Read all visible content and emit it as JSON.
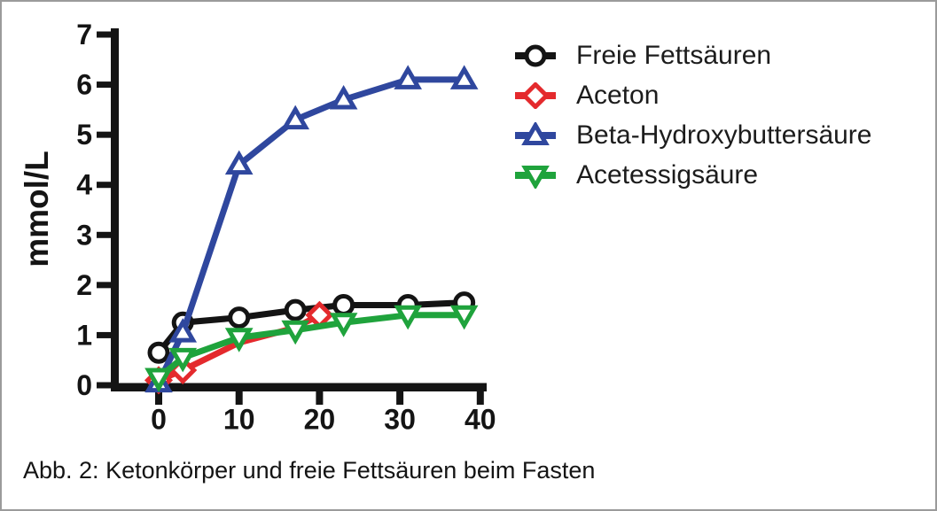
{
  "figure": {
    "caption": "Abb. 2: Ketonkörper und freie Fettsäuren beim Fasten"
  },
  "chart_data": {
    "type": "line",
    "title": "",
    "xlabel": "",
    "ylabel": "mmol/L",
    "xlim": [
      0,
      40
    ],
    "ylim": [
      0,
      7
    ],
    "x_ticks": [
      0,
      10,
      20,
      30,
      40
    ],
    "y_ticks": [
      0,
      1,
      2,
      3,
      4,
      5,
      6,
      7
    ],
    "grid": false,
    "legend_position": "top-right",
    "axis_color": "#141414",
    "series": [
      {
        "name": "Freie Fettsäuren",
        "color": "#141414",
        "marker": "circle",
        "x": [
          0,
          3,
          10,
          17,
          23,
          31,
          38
        ],
        "values": [
          0.65,
          1.25,
          1.35,
          1.5,
          1.6,
          1.6,
          1.65
        ]
      },
      {
        "name": "Aceton",
        "color": "#e42a2d",
        "marker": "diamond",
        "x": [
          0,
          3,
          10,
          17,
          20
        ],
        "values": [
          0.1,
          0.3,
          0.85,
          1.15,
          1.4
        ],
        "marker_x": [
          0,
          3,
          20
        ]
      },
      {
        "name": "Beta-Hydroxybuttersäure",
        "color": "#2f479e",
        "marker": "triangle-up",
        "x": [
          0,
          3,
          10,
          17,
          23,
          31,
          38
        ],
        "values": [
          0.05,
          1.05,
          4.4,
          5.3,
          5.7,
          6.1,
          6.1
        ]
      },
      {
        "name": "Acetessigsäure",
        "color": "#1fa33c",
        "marker": "triangle-down",
        "x": [
          0,
          3,
          10,
          17,
          23,
          31,
          38
        ],
        "values": [
          0.15,
          0.55,
          0.95,
          1.1,
          1.25,
          1.4,
          1.4
        ]
      }
    ]
  }
}
